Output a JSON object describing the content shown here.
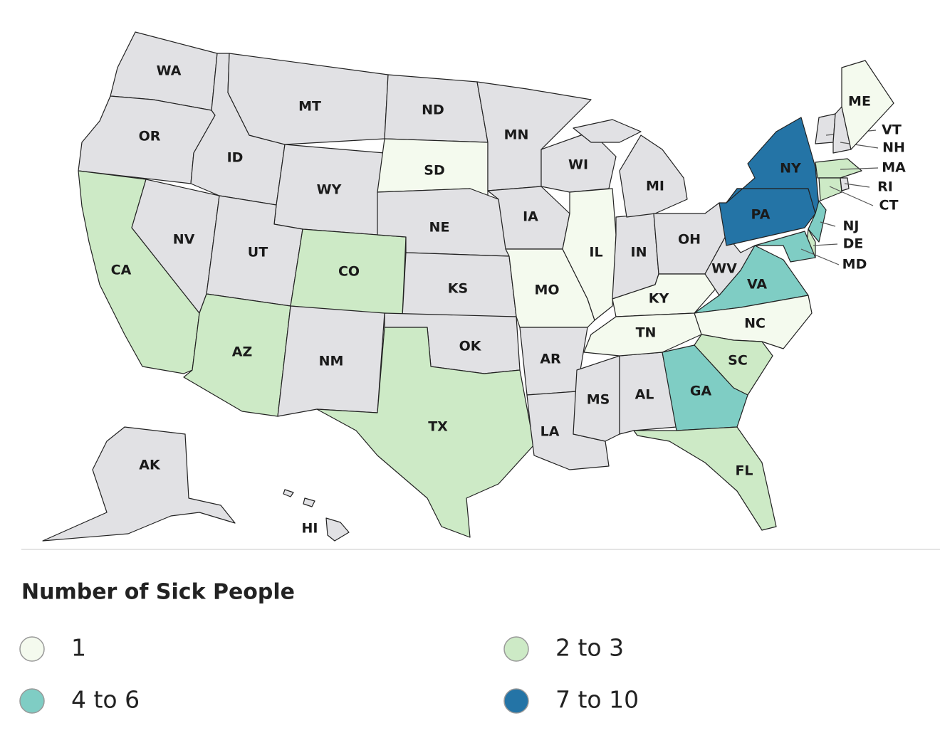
{
  "map": {
    "no_data_color": "#e1e1e4",
    "states": [
      {
        "label": "WA",
        "class": null
      },
      {
        "label": "OR",
        "class": null
      },
      {
        "label": "CA",
        "class": 1
      },
      {
        "label": "NV",
        "class": null
      },
      {
        "label": "ID",
        "class": null
      },
      {
        "label": "MT",
        "class": null
      },
      {
        "label": "WY",
        "class": null
      },
      {
        "label": "UT",
        "class": null
      },
      {
        "label": "AZ",
        "class": 1
      },
      {
        "label": "CO",
        "class": 1
      },
      {
        "label": "NM",
        "class": null
      },
      {
        "label": "ND",
        "class": null
      },
      {
        "label": "SD",
        "class": 0
      },
      {
        "label": "NE",
        "class": null
      },
      {
        "label": "KS",
        "class": null
      },
      {
        "label": "OK",
        "class": null
      },
      {
        "label": "TX",
        "class": 1
      },
      {
        "label": "MN",
        "class": null
      },
      {
        "label": "IA",
        "class": null
      },
      {
        "label": "MO",
        "class": 0
      },
      {
        "label": "AR",
        "class": null
      },
      {
        "label": "LA",
        "class": null
      },
      {
        "label": "MS",
        "class": null
      },
      {
        "label": "AL",
        "class": null
      },
      {
        "label": "WI",
        "class": null
      },
      {
        "label": "IL",
        "class": 0
      },
      {
        "label": "IN",
        "class": null
      },
      {
        "label": "MI",
        "class": null
      },
      {
        "label": "OH",
        "class": null
      },
      {
        "label": "KY",
        "class": 0
      },
      {
        "label": "TN",
        "class": 0
      },
      {
        "label": "WV",
        "class": null
      },
      {
        "label": "VA",
        "class": 2
      },
      {
        "label": "NC",
        "class": 0
      },
      {
        "label": "SC",
        "class": 1
      },
      {
        "label": "GA",
        "class": 2
      },
      {
        "label": "FL",
        "class": 1
      },
      {
        "label": "PA",
        "class": 3
      },
      {
        "label": "NY",
        "class": 3
      },
      {
        "label": "NJ",
        "class": 2
      },
      {
        "label": "DE",
        "class": 1
      },
      {
        "label": "MD",
        "class": 2
      },
      {
        "label": "VT",
        "class": null
      },
      {
        "label": "NH",
        "class": null
      },
      {
        "label": "ME",
        "class": 0
      },
      {
        "label": "MA",
        "class": 1
      },
      {
        "label": "CT",
        "class": 1
      },
      {
        "label": "RI",
        "class": null
      },
      {
        "label": "AK",
        "class": null
      },
      {
        "label": "HI",
        "class": null
      }
    ],
    "legend": {
      "title": "Number of Sick People",
      "classes": [
        {
          "label": "1",
          "color": "#f4faee"
        },
        {
          "label": "2 to 3",
          "color": "#cdeac6"
        },
        {
          "label": "4 to 6",
          "color": "#7fcdc4"
        },
        {
          "label": "7 to 10",
          "color": "#2474a6"
        }
      ]
    }
  }
}
